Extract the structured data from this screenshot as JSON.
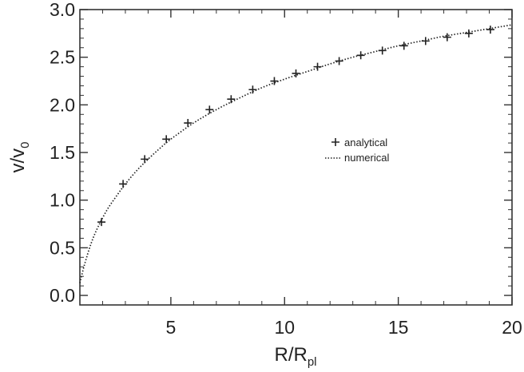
{
  "chart_data": {
    "type": "scatter",
    "title": "",
    "xlabel": "R/R",
    "xlabel_sub": "pl",
    "ylabel": "v/v",
    "ylabel_sub": "0",
    "xlim": [
      1,
      20
    ],
    "ylim": [
      -0.1,
      3.0
    ],
    "xticks": [
      5,
      10,
      15,
      20
    ],
    "xtick_labels": [
      "5",
      "10",
      "15",
      "20"
    ],
    "yticks": [
      0.0,
      0.5,
      1.0,
      1.5,
      2.0,
      2.5,
      3.0
    ],
    "ytick_labels": [
      "0.0",
      "0.5",
      "1.0",
      "1.5",
      "2.0",
      "2.5",
      "3.0"
    ],
    "grid": false,
    "legend_position": "center-right",
    "series": [
      {
        "name": "analytical",
        "marker": "plus",
        "x": [
          1.95,
          2.9,
          3.85,
          4.8,
          5.75,
          6.7,
          7.65,
          8.6,
          9.55,
          10.5,
          11.45,
          12.4,
          13.35,
          14.3,
          15.25,
          16.2,
          17.15,
          18.1,
          19.05
        ],
        "y": [
          0.77,
          1.17,
          1.43,
          1.64,
          1.81,
          1.95,
          2.06,
          2.16,
          2.25,
          2.33,
          2.4,
          2.46,
          2.52,
          2.57,
          2.62,
          2.67,
          2.71,
          2.75,
          2.79
        ]
      },
      {
        "name": "numerical",
        "line_style": "dotted",
        "x": [
          1.0,
          1.2,
          1.5,
          1.8,
          2.2,
          2.6,
          3.0,
          3.5,
          4.0,
          4.5,
          5.0,
          6.0,
          7.0,
          8.0,
          9.0,
          10.0,
          11.0,
          12.0,
          13.0,
          14.0,
          15.0,
          16.0,
          17.0,
          18.0,
          19.0,
          20.0
        ],
        "y": [
          0.13,
          0.32,
          0.55,
          0.72,
          0.9,
          1.04,
          1.17,
          1.31,
          1.43,
          1.54,
          1.64,
          1.81,
          1.95,
          2.07,
          2.18,
          2.27,
          2.35,
          2.43,
          2.5,
          2.56,
          2.62,
          2.67,
          2.72,
          2.76,
          2.8,
          2.84
        ]
      }
    ]
  }
}
